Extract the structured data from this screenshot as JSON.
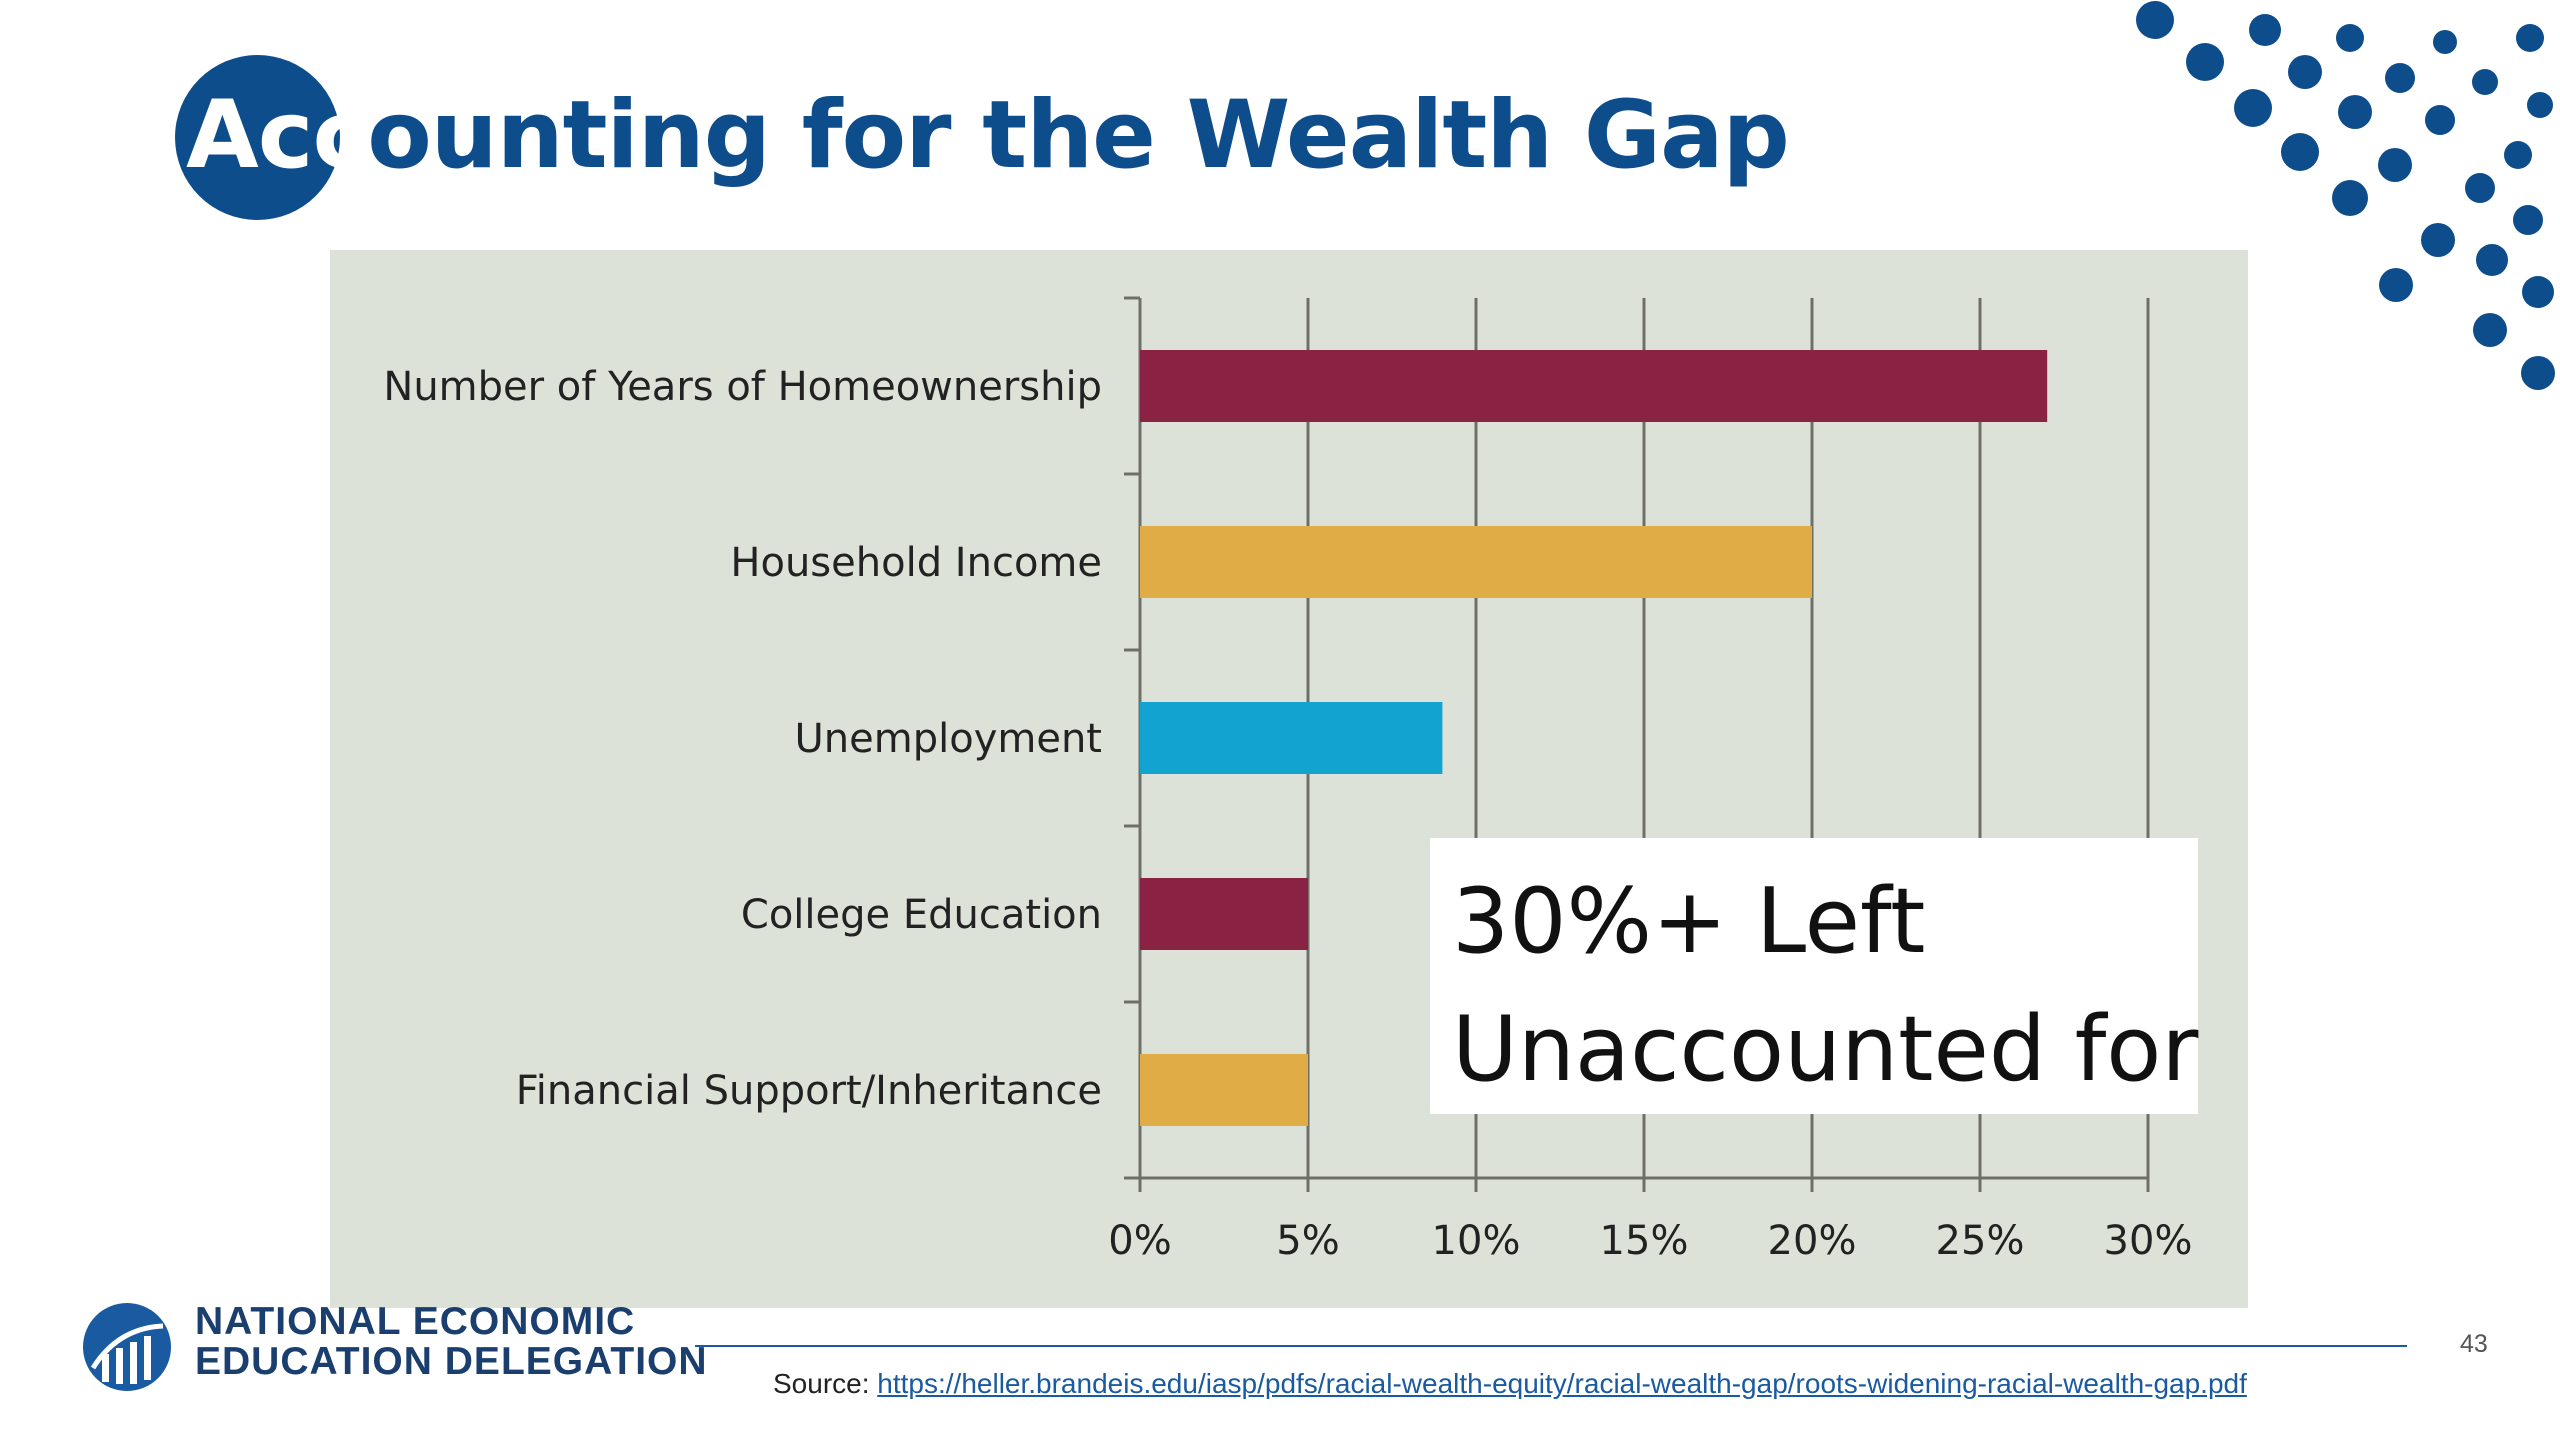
{
  "slide": {
    "title_circle_part": "Acc",
    "title_rest": "ounting for the Wealth Gap",
    "page_number": "43"
  },
  "callout": {
    "line1": "30%+ Left",
    "line2": "Unaccounted for"
  },
  "footer": {
    "org_line1": "NATIONAL ECONOMIC",
    "org_line2": "EDUCATION DELEGATION",
    "source_label": "Source: ",
    "source_url": "https://heller.brandeis.edu/iasp/pdfs/racial-wealth-equity/racial-wealth-gap/roots-widening-racial-wealth-gap.pdf"
  },
  "colors": {
    "brand_blue": "#0e4d8c",
    "maroon": "#8a2244",
    "gold": "#e0ac45",
    "teal": "#12a3d1",
    "panel": "#dde2d9"
  },
  "chart_data": {
    "type": "bar",
    "orientation": "horizontal",
    "categories": [
      "Number of Years of Homeownership",
      "Household Income",
      "Unemployment",
      "College Education",
      "Financial Support/Inheritance"
    ],
    "values": [
      27,
      20,
      9,
      5,
      5
    ],
    "bar_colors": [
      "#8a2244",
      "#e0ac45",
      "#12a3d1",
      "#8a2244",
      "#e0ac45"
    ],
    "xlim": [
      0,
      30
    ],
    "xticks": [
      0,
      5,
      10,
      15,
      20,
      25,
      30
    ],
    "xtick_labels": [
      "0%",
      "5%",
      "10%",
      "15%",
      "20%",
      "25%",
      "30%"
    ],
    "title": "",
    "xlabel": "",
    "ylabel": "",
    "grid": "vertical"
  }
}
